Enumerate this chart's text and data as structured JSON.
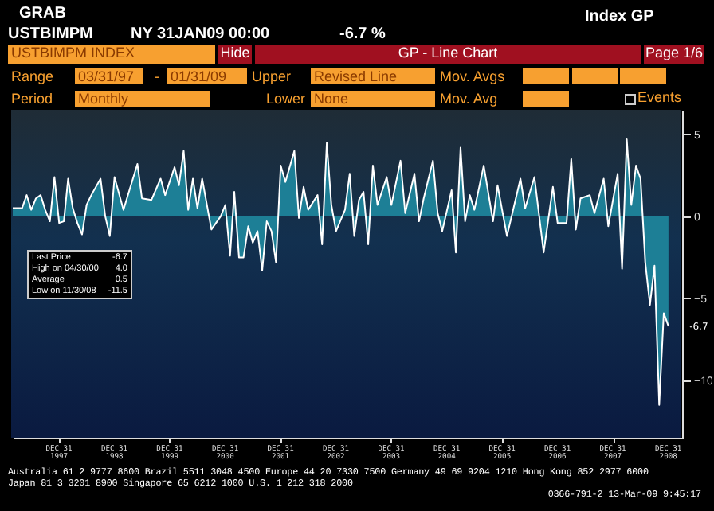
{
  "chart_data": {
    "type": "area",
    "title": "USTBIMPM INDEX",
    "x": [
      "1997-03",
      "1997-05",
      "1997-06",
      "1997-07",
      "1997-08",
      "1997-09",
      "1997-10",
      "1997-11",
      "1997-12",
      "1998-01",
      "1998-02",
      "1998-03",
      "1998-04",
      "1998-05",
      "1998-06",
      "1998-07",
      "1998-08",
      "1998-10",
      "1998-11",
      "1998-12",
      "1999-01",
      "1999-03",
      "1999-06",
      "1999-07",
      "1999-09",
      "1999-11",
      "1999-12",
      "2000-02",
      "2000-03",
      "2000-04",
      "2000-05",
      "2000-06",
      "2000-07",
      "2000-08",
      "2000-10",
      "2000-12",
      "2001-01",
      "2001-02",
      "2001-03",
      "2001-04",
      "2001-05",
      "2001-06",
      "2001-07",
      "2001-08",
      "2001-09",
      "2001-10",
      "2001-11",
      "2001-12",
      "2002-01",
      "2002-02",
      "2002-04",
      "2002-05",
      "2002-06",
      "2002-07",
      "2002-09",
      "2002-10",
      "2002-11",
      "2002-12",
      "2003-01",
      "2003-03",
      "2003-04",
      "2003-05",
      "2003-06",
      "2003-07",
      "2003-08",
      "2003-09",
      "2003-10",
      "2003-12",
      "2004-01",
      "2004-03",
      "2004-04",
      "2004-06",
      "2004-07",
      "2004-08",
      "2004-10",
      "2004-11",
      "2004-12",
      "2005-02",
      "2005-03",
      "2005-04",
      "2005-05",
      "2005-06",
      "2005-07",
      "2005-09",
      "2005-11",
      "2005-12",
      "2006-02",
      "2006-05",
      "2006-06",
      "2006-08",
      "2006-10",
      "2006-12",
      "2007-01",
      "2007-03",
      "2007-04",
      "2007-05",
      "2007-06",
      "2007-08",
      "2007-09",
      "2007-11",
      "2007-12",
      "2008-02",
      "2008-03",
      "2008-04",
      "2008-05",
      "2008-06",
      "2008-07",
      "2008-08",
      "2008-09",
      "2008-10",
      "2008-11",
      "2008-12",
      "2009-01"
    ],
    "series": [
      {
        "color": "#1d7f96",
        "values": [
          0.5,
          0.5,
          1.3,
          0.4,
          1.1,
          1.3,
          0.4,
          -0.3,
          2.4,
          -0.4,
          -0.3,
          2.3,
          0.5,
          -0.4,
          -1.1,
          0.7,
          1.3,
          2.3,
          0.0,
          -1.2,
          2.4,
          0.4,
          3.2,
          1.1,
          1.0,
          2.3,
          1.3,
          3.0,
          1.9,
          4.0,
          0.4,
          2.3,
          0.5,
          2.3,
          -0.8,
          0.0,
          0.7,
          -2.4,
          1.5,
          -2.5,
          -2.5,
          -0.6,
          -1.6,
          -0.9,
          -3.3,
          -0.3,
          -0.9,
          -2.8,
          3.1,
          2.1,
          4.0,
          -0.1,
          1.8,
          0.4,
          1.3,
          -1.7,
          4.5,
          0.7,
          -0.9,
          0.4,
          2.6,
          -1.2,
          1.0,
          1.5,
          -1.7,
          3.1,
          0.7,
          2.4,
          0.7,
          3.4,
          0.2,
          2.6,
          -0.3,
          1.1,
          3.4,
          0.2,
          -0.9,
          1.6,
          -2.2,
          4.2,
          -0.3,
          1.3,
          0.4,
          3.1,
          -0.3,
          1.9,
          -1.2,
          2.3,
          0.5,
          2.4,
          -2.2,
          1.8,
          -0.4,
          -0.4,
          3.5,
          -0.8,
          1.1,
          1.3,
          0.2,
          2.3,
          -0.6,
          2.6,
          -3.2,
          4.7,
          0.7,
          3.1,
          2.3,
          -2.8,
          -5.4,
          -3.0,
          -11.5,
          -5.9,
          -6.7
        ]
      }
    ],
    "xlim": [
      "1997-03",
      "2009-04"
    ],
    "xticks": [
      {
        "value": "1997-12-31",
        "label": "DEC 31 1997"
      },
      {
        "value": "1998-12-31",
        "label": "DEC 31 1998"
      },
      {
        "value": "1999-12-31",
        "label": "DEC 31 1999"
      },
      {
        "value": "2000-12-31",
        "label": "DEC 31 2000"
      },
      {
        "value": "2001-12-31",
        "label": "DEC 31 2001"
      },
      {
        "value": "2002-12-31",
        "label": "DEC 31 2002"
      },
      {
        "value": "2003-12-31",
        "label": "DEC 31 2003"
      },
      {
        "value": "2004-12-31",
        "label": "DEC 31 2004"
      },
      {
        "value": "2005-12-31",
        "label": "DEC 31 2005"
      },
      {
        "value": "2006-12-31",
        "label": "DEC 31 2006"
      },
      {
        "value": "2007-12-31",
        "label": "DEC 31 2007"
      },
      {
        "value": "2008-12-31",
        "label": "DEC 31 2008"
      }
    ],
    "ylim": [
      -13.5,
      6.5
    ],
    "yticks": [
      -10,
      -5,
      0,
      5
    ],
    "annotations": [
      "GRAB",
      "USTBIMPM",
      "NY 31JAN09 00:00",
      "-6.7 %",
      "Index GP",
      "Hide",
      "GP - Line Chart",
      "Page 1/6",
      "Range",
      "03/31/97",
      "-",
      "01/31/09",
      "Upper",
      "Revised Line",
      "Mov. Avgs",
      "Period",
      "Monthly",
      "Lower",
      "None",
      "Mov. Avg",
      "Events",
      "Last Price",
      "-6.7",
      "High on 04/30/00",
      "4.0",
      "Average",
      "0.5",
      "Low on 11/30/08",
      "-11.5",
      "Australia 61 2 9777 8600 Brazil 5511 3048 4500 Europe 44 20 7330 7500 Germany 49 69 9204 1210 Hong Kong 852 2977 6000",
      "Japan 81 3 3201 8900   Singapore 65 6212 1000   U.S. 1 212 318 2000",
      "0366-791-2 13-Mar-09  9:45:17",
      {
        "text": "-6.7",
        "x": "2009-01",
        "y": -6.7
      }
    ]
  }
}
